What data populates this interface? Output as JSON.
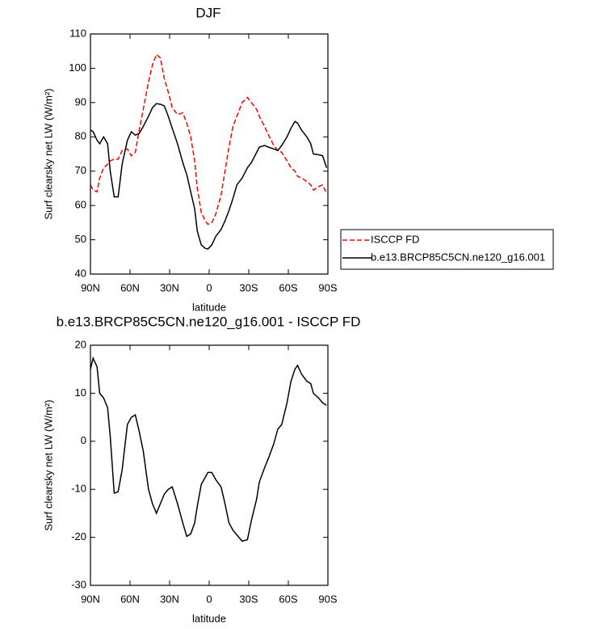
{
  "chart_data": [
    {
      "type": "line",
      "title": "DJF",
      "x_label": "latitude",
      "y_label": "Surf clearsky net LW (W/m²)",
      "x": [
        90,
        88,
        85,
        83,
        80,
        77,
        75,
        72,
        69,
        66,
        62,
        59,
        56,
        53,
        50,
        46,
        43,
        40,
        37,
        34,
        31,
        28,
        24,
        20,
        17,
        14,
        11,
        9,
        6,
        3,
        1,
        -2,
        -5,
        -9,
        -12,
        -15,
        -18,
        -21,
        -25,
        -29,
        -32,
        -36,
        -38,
        -42,
        -45,
        -49,
        -52,
        -55,
        -59,
        -62,
        -65,
        -67,
        -70,
        -74,
        -77,
        -79,
        -83,
        -86,
        -89
      ],
      "series": [
        {
          "name": "ISCCP FD",
          "color": "#ff0000",
          "dash": true,
          "values": [
            66,
            64.5,
            64,
            68,
            71,
            72,
            73,
            73.5,
            73.5,
            76,
            76.5,
            74.5,
            75.5,
            82,
            88,
            96,
            101,
            104,
            103,
            97,
            93,
            88.5,
            86.5,
            87,
            84,
            80,
            73,
            65,
            58,
            55.5,
            54.5,
            55,
            57.5,
            63,
            70,
            77,
            83,
            86,
            90,
            91.5,
            90,
            88,
            86,
            83,
            80.5,
            77.5,
            76,
            75.5,
            73,
            71,
            70,
            68.5,
            68,
            67,
            66,
            64.5,
            65.5,
            66,
            63.5
          ]
        },
        {
          "name": "b.e13.BRCP85C5CN.ne120_g16.001",
          "color": "#000000",
          "dash": false,
          "values": [
            82,
            81.5,
            79,
            78,
            80,
            78,
            70,
            62.5,
            62.5,
            72,
            79,
            81.5,
            80.5,
            81,
            83,
            86,
            88.5,
            89.7,
            89.5,
            89,
            86,
            82.5,
            78,
            72.5,
            69,
            64,
            59,
            52.5,
            48.5,
            47.5,
            47.3,
            48.5,
            51,
            53,
            55.5,
            58.5,
            62,
            66,
            68,
            71,
            72.5,
            75.5,
            77,
            77.5,
            77,
            76.5,
            76,
            77.5,
            80,
            82.5,
            84.5,
            84,
            82,
            80,
            78,
            75,
            74.8,
            74.5,
            71
          ]
        }
      ],
      "xlim": [
        90,
        -90
      ],
      "xticks": [
        {
          "value": 90,
          "label": "90N"
        },
        {
          "value": 60,
          "label": "60N"
        },
        {
          "value": 30,
          "label": "30N"
        },
        0,
        {
          "value": -30,
          "label": "30S"
        },
        {
          "value": -60,
          "label": "60S"
        },
        {
          "value": -90,
          "label": "90S"
        }
      ],
      "ylim": [
        40,
        110
      ],
      "yticks": [
        40,
        50,
        60,
        70,
        80,
        90,
        100,
        110
      ]
    },
    {
      "type": "line",
      "title": "b.e13.BRCP85C5CN.ne120_g16.001 - ISCCP FD",
      "x_label": "latitude",
      "y_label": "Surf clearsky net LW (W/m²)",
      "x": [
        90,
        88,
        85,
        83,
        80,
        77,
        75,
        72,
        69,
        66,
        62,
        59,
        56,
        53,
        50,
        46,
        43,
        40,
        37,
        34,
        31,
        28,
        24,
        20,
        17,
        14,
        11,
        9,
        6,
        3,
        1,
        -2,
        -5,
        -9,
        -12,
        -15,
        -18,
        -21,
        -25,
        -29,
        -32,
        -36,
        -38,
        -42,
        -45,
        -49,
        -52,
        -55,
        -59,
        -62,
        -65,
        -67,
        -70,
        -74,
        -77,
        -79,
        -83,
        -86,
        -89
      ],
      "series": [
        {
          "color": "#000000",
          "dash": false,
          "values": [
            15,
            17.3,
            15.5,
            10,
            9,
            7,
            1,
            -10.8,
            -10.5,
            -6,
            3.5,
            5,
            5.5,
            2,
            -2,
            -10,
            -13,
            -15,
            -13,
            -11,
            -10,
            -9.5,
            -13,
            -17,
            -19.8,
            -19.3,
            -17,
            -13.5,
            -9,
            -7.5,
            -6.5,
            -6.5,
            -8,
            -9.5,
            -13,
            -17,
            -18.5,
            -19.5,
            -20.8,
            -20.5,
            -16.5,
            -12,
            -8.5,
            -5.5,
            -3.5,
            -0.5,
            2.5,
            3.5,
            8,
            12.5,
            15,
            15.8,
            14,
            12.5,
            12,
            10,
            9,
            8,
            7.5
          ]
        }
      ],
      "xlim": [
        90,
        -90
      ],
      "xticks": [
        {
          "value": 90,
          "label": "90N"
        },
        {
          "value": 60,
          "label": "60N"
        },
        {
          "value": 30,
          "label": "30N"
        },
        0,
        {
          "value": -30,
          "label": "30S"
        },
        {
          "value": -60,
          "label": "60S"
        },
        {
          "value": -90,
          "label": "90S"
        }
      ],
      "ylim": [
        -30,
        20
      ],
      "yticks": [
        -30,
        -20,
        -10,
        0,
        10,
        20
      ]
    }
  ]
}
